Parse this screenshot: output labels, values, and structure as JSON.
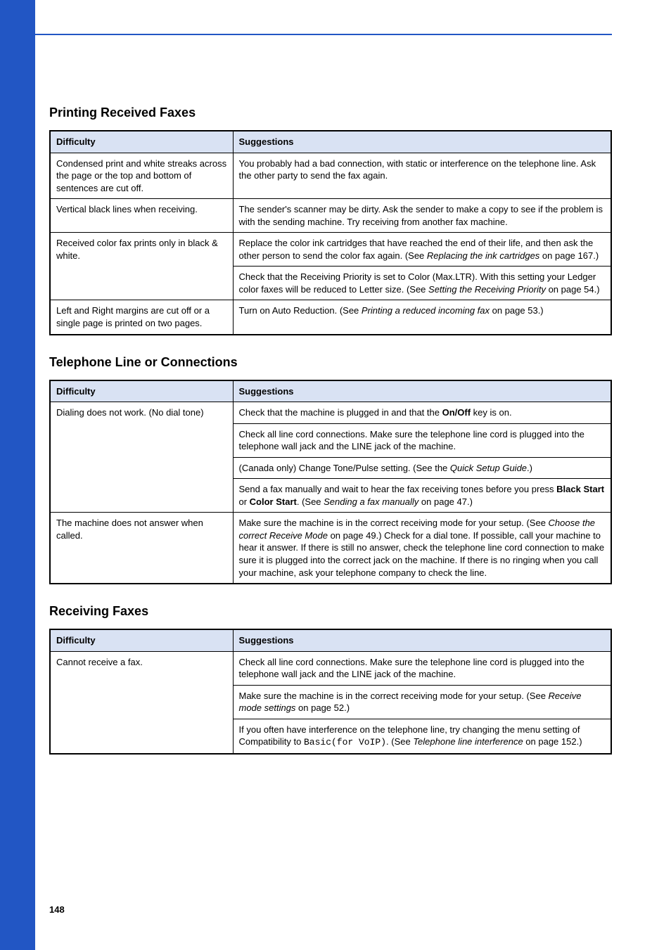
{
  "page_number": "148",
  "colors": {
    "sidebar": "#2256c4",
    "header_bg": "#d9e2f3",
    "rule": "#2256c4",
    "text": "#000000",
    "bg": "#ffffff"
  },
  "sections": [
    {
      "title": "Printing Received Faxes",
      "headers": {
        "difficulty": "Difficulty",
        "suggestions": "Suggestions"
      },
      "rows": [
        {
          "difficulty": "Condensed print and white streaks across the page or the top and bottom of sentences are cut off.",
          "suggestions": [
            {
              "parts": [
                {
                  "t": "You probably had a bad connection, with static or interference on the telephone line. Ask the other party to send the fax again."
                }
              ]
            }
          ]
        },
        {
          "difficulty": "Vertical black lines when receiving.",
          "suggestions": [
            {
              "parts": [
                {
                  "t": "The sender's scanner may be dirty. Ask the sender to make a copy to see if the problem is with the sending machine. Try receiving from another fax machine."
                }
              ]
            }
          ]
        },
        {
          "difficulty": "Received color fax prints only in black & white.",
          "suggestions": [
            {
              "parts": [
                {
                  "t": "Replace the color ink cartridges that have reached the end of their life, and then ask the other person to send the color fax again. (See "
                },
                {
                  "t": "Replacing the ink cartridges",
                  "style": "italic"
                },
                {
                  "t": " on page 167.)"
                }
              ]
            },
            {
              "parts": [
                {
                  "t": "Check that the Receiving Priority is set to Color (Max.LTR). With this setting your Ledger color faxes will be reduced to Letter size. (See "
                },
                {
                  "t": "Setting the Receiving Priority",
                  "style": "italic"
                },
                {
                  "t": " on page 54.)"
                }
              ]
            }
          ]
        },
        {
          "difficulty": "Left and Right margins are cut off or a single page is printed on two pages.",
          "suggestions": [
            {
              "parts": [
                {
                  "t": "Turn on Auto Reduction. (See "
                },
                {
                  "t": "Printing a reduced incoming fax",
                  "style": "italic"
                },
                {
                  "t": " on page 53.)"
                }
              ]
            }
          ]
        }
      ]
    },
    {
      "title": "Telephone Line or Connections",
      "headers": {
        "difficulty": "Difficulty",
        "suggestions": "Suggestions"
      },
      "rows": [
        {
          "difficulty": "Dialing does not work. (No dial tone)",
          "suggestions": [
            {
              "parts": [
                {
                  "t": "Check that the machine is plugged in and that the "
                },
                {
                  "t": "On/Off",
                  "style": "bold"
                },
                {
                  "t": " key is on."
                }
              ]
            },
            {
              "parts": [
                {
                  "t": "Check all line cord connections. Make sure the telephone line cord is plugged into the telephone wall jack and the LINE jack of the machine."
                }
              ]
            },
            {
              "parts": [
                {
                  "t": "(Canada only) Change Tone/Pulse setting. (See the "
                },
                {
                  "t": "Quick Setup Guide",
                  "style": "italic"
                },
                {
                  "t": ".)"
                }
              ]
            },
            {
              "parts": [
                {
                  "t": "Send a fax manually and wait to hear the fax receiving tones before you press "
                },
                {
                  "t": "Black Start",
                  "style": "bold"
                },
                {
                  "t": " or "
                },
                {
                  "t": "Color Start",
                  "style": "bold"
                },
                {
                  "t": ". (See "
                },
                {
                  "t": "Sending a fax manually",
                  "style": "italic"
                },
                {
                  "t": " on page 47.)"
                }
              ]
            }
          ]
        },
        {
          "difficulty": "The machine does not answer when called.",
          "suggestions": [
            {
              "parts": [
                {
                  "t": "Make sure the machine is in the correct receiving mode for your setup. (See "
                },
                {
                  "t": "Choose the correct Receive Mode",
                  "style": "italic"
                },
                {
                  "t": " on page 49.) Check for a dial tone. If possible, call your machine to hear it answer. If there is still no answer, check the telephone line cord connection to make sure it is plugged into the correct jack on the machine. If there is no ringing when you call your machine, ask your telephone company to check the line."
                }
              ]
            }
          ]
        }
      ]
    },
    {
      "title": "Receiving Faxes",
      "headers": {
        "difficulty": "Difficulty",
        "suggestions": "Suggestions"
      },
      "rows": [
        {
          "difficulty": "Cannot receive a fax.",
          "suggestions": [
            {
              "parts": [
                {
                  "t": "Check all line cord connections. Make sure the telephone line cord is plugged into the telephone wall jack and the LINE jack of the machine."
                }
              ]
            },
            {
              "parts": [
                {
                  "t": "Make sure the machine is in the correct receiving mode for your setup. (See "
                },
                {
                  "t": "Receive mode settings",
                  "style": "italic"
                },
                {
                  "t": " on page 52.)"
                }
              ]
            },
            {
              "parts": [
                {
                  "t": "If you often have interference on the telephone line, try changing the menu setting of Compatibility to "
                },
                {
                  "t": "Basic(for VoIP)",
                  "style": "mono"
                },
                {
                  "t": ". (See "
                },
                {
                  "t": "Telephone line interference",
                  "style": "italic"
                },
                {
                  "t": " on page 152.)"
                }
              ]
            }
          ]
        }
      ]
    }
  ]
}
